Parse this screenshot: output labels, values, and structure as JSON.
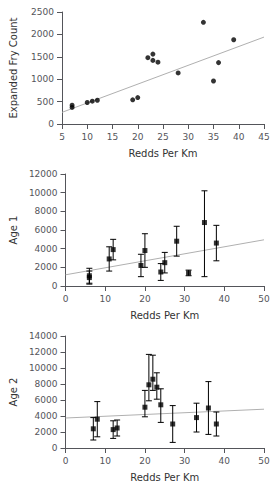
{
  "chart_data": [
    {
      "type": "scatter",
      "xlabel": "Redds Per Km",
      "ylabel": "Expanded Fry Count",
      "xlim": [
        5,
        45
      ],
      "ylim": [
        0,
        2500
      ],
      "xticks": [
        5,
        10,
        15,
        20,
        25,
        30,
        35,
        40,
        45
      ],
      "yticks": [
        0,
        500,
        1000,
        1500,
        2000,
        2500
      ],
      "grid": false,
      "series": [
        {
          "type": "line",
          "color": "#b0b0b0",
          "line_style": "solid",
          "x": [
            5,
            45
          ],
          "values": [
            260,
            1940
          ]
        },
        {
          "type": "scatter",
          "color": "#000000",
          "marker": "circle",
          "x": [
            7,
            7,
            10,
            11,
            12,
            19,
            20,
            22,
            23,
            23,
            24,
            28,
            33,
            35,
            36,
            39
          ],
          "values": [
            370,
            420,
            480,
            510,
            530,
            540,
            590,
            1480,
            1560,
            1420,
            1380,
            1140,
            2270,
            960,
            1370,
            1880
          ]
        }
      ]
    },
    {
      "type": "scatter",
      "xlabel": "Redds Per Km",
      "ylabel": "Age 1",
      "xlim": [
        0,
        50
      ],
      "ylim": [
        0,
        12000
      ],
      "xticks": [
        0,
        10,
        20,
        30,
        40,
        50
      ],
      "yticks": [
        0,
        2000,
        4000,
        6000,
        8000,
        10000,
        12000
      ],
      "grid": false,
      "series": [
        {
          "type": "line",
          "color": "#b0b0b0",
          "line_style": "solid",
          "x": [
            0,
            50
          ],
          "values": [
            1200,
            4950
          ]
        },
        {
          "type": "scatter",
          "color": "#000000",
          "marker": "square",
          "x": [
            6,
            6,
            11,
            12,
            19,
            20,
            24,
            25,
            28,
            31,
            35,
            38
          ],
          "values": [
            900,
            1100,
            2900,
            3900,
            2200,
            3800,
            1500,
            2500,
            4800,
            1400,
            6800,
            4600
          ],
          "ci_lo": [
            200,
            300,
            1600,
            2800,
            1000,
            2000,
            600,
            1400,
            3200,
            1100,
            1000,
            2700
          ],
          "ci_hi": [
            1600,
            1900,
            4200,
            5000,
            3400,
            5600,
            2400,
            3600,
            6400,
            1700,
            10200,
            6500
          ]
        }
      ]
    },
    {
      "type": "scatter",
      "xlabel": "Redds Per Km",
      "ylabel": "Age 2",
      "xlim": [
        0,
        50
      ],
      "ylim": [
        0,
        14000
      ],
      "xticks": [
        0,
        10,
        20,
        30,
        40,
        50
      ],
      "yticks": [
        0,
        2000,
        4000,
        6000,
        8000,
        10000,
        12000,
        14000
      ],
      "grid": false,
      "series": [
        {
          "type": "line",
          "color": "#b0b0b0",
          "line_style": "solid",
          "x": [
            0,
            50
          ],
          "values": [
            3750,
            4850
          ]
        },
        {
          "type": "scatter",
          "color": "#000000",
          "marker": "square",
          "x": [
            7,
            8,
            12,
            13,
            20,
            21,
            22,
            23,
            24,
            27,
            33,
            36,
            38
          ],
          "values": [
            2400,
            3600,
            2300,
            2500,
            5100,
            7900,
            8600,
            7600,
            5400,
            3000,
            3800,
            5000,
            3000
          ],
          "ci_lo": [
            1000,
            1400,
            1200,
            1500,
            3900,
            5900,
            7200,
            6100,
            3200,
            700,
            2000,
            1700,
            1500
          ],
          "ci_hi": [
            3800,
            5800,
            3400,
            3500,
            7200,
            11700,
            11600,
            9400,
            7400,
            5300,
            5600,
            8300,
            4500
          ]
        }
      ]
    }
  ]
}
